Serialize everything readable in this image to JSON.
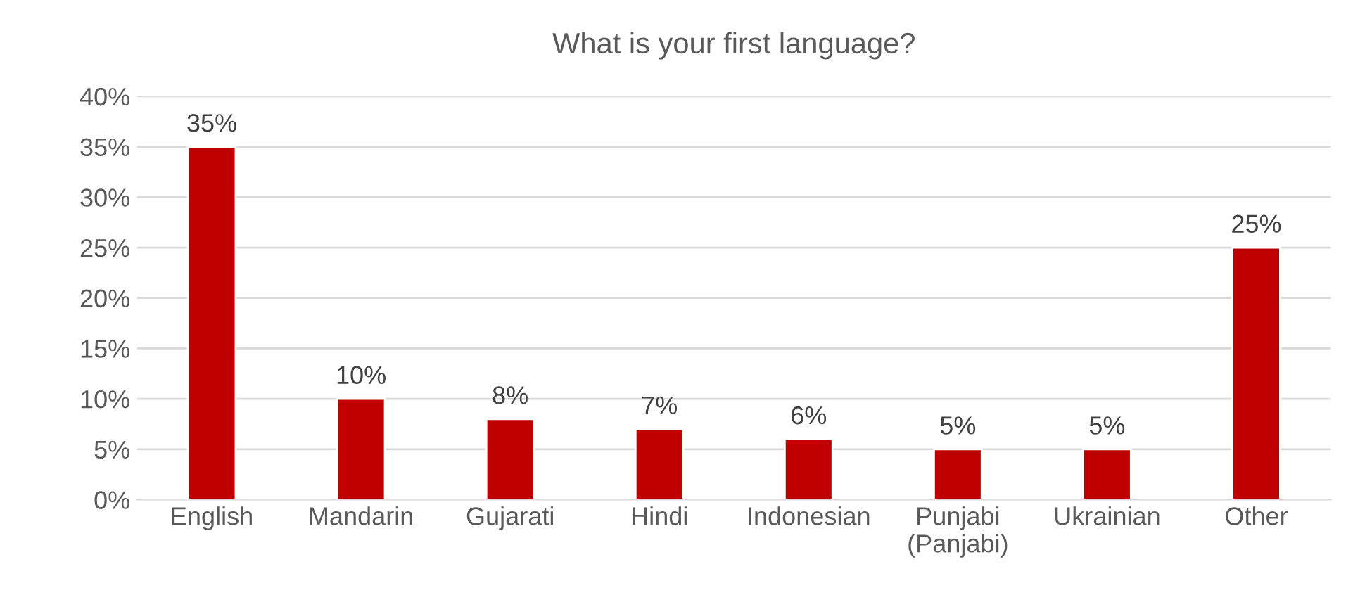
{
  "chart_data": {
    "type": "bar",
    "title": "What is your first language?",
    "categories": [
      "English",
      "Mandarin",
      "Gujarati",
      "Hindi",
      "Indonesian",
      "Punjabi\n(Panjabi)",
      "Ukrainian",
      "Other"
    ],
    "values": [
      35,
      10,
      8,
      7,
      6,
      5,
      5,
      25
    ],
    "value_labels": [
      "35%",
      "10%",
      "8%",
      "7%",
      "6%",
      "5%",
      "5%",
      "25%"
    ],
    "color": "#c00000",
    "ylim": [
      0,
      40
    ],
    "yticks": [
      {
        "value": 0,
        "label": "0%"
      },
      {
        "value": 5,
        "label": "5%"
      },
      {
        "value": 10,
        "label": "10%"
      },
      {
        "value": 15,
        "label": "15%"
      },
      {
        "value": 20,
        "label": "20%"
      },
      {
        "value": 25,
        "label": "25%"
      },
      {
        "value": 30,
        "label": "30%"
      },
      {
        "value": 35,
        "label": "35%"
      },
      {
        "value": 40,
        "label": "40%"
      }
    ],
    "grid": "y",
    "legend": false
  }
}
